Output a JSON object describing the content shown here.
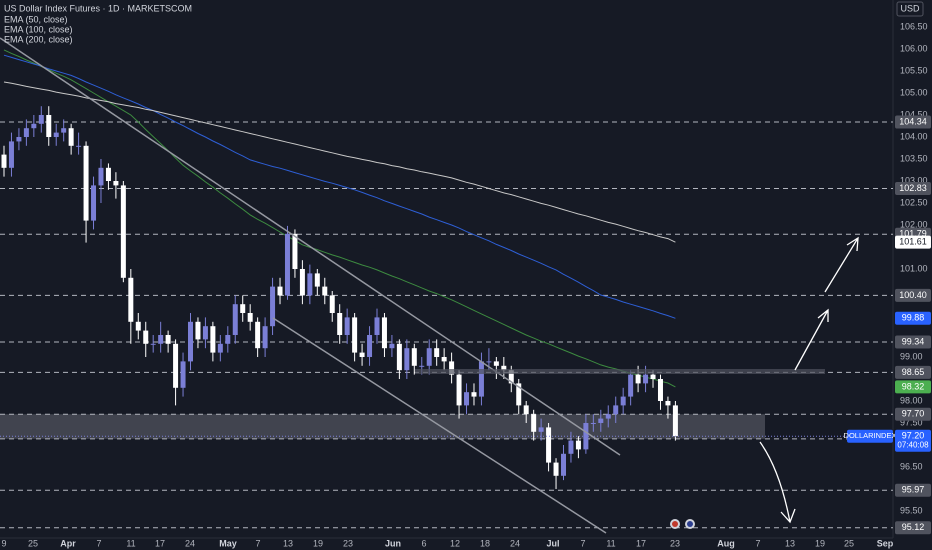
{
  "chart_data": {
    "type": "candlestick",
    "title": "US Dollar Index Futures · 1D · MARKETSCOM",
    "currency": "USD",
    "up_color": "#7b7fd6",
    "down_color": "#ffffff",
    "ylim": [
      94.886,
      107.114
    ],
    "yticks": [
      {
        "value": 106.5,
        "label": "106.50"
      },
      {
        "value": 106,
        "label": "106.00"
      },
      {
        "value": 105.5,
        "label": "105.50"
      },
      {
        "value": 105,
        "label": "105.00"
      },
      {
        "value": 104.5,
        "label": "104.50"
      },
      {
        "value": 104,
        "label": "104.00"
      },
      {
        "value": 103.5,
        "label": "103.50"
      },
      {
        "value": 103,
        "label": "103.00"
      },
      {
        "value": 102.5,
        "label": "102.50"
      },
      {
        "value": 102,
        "label": "102.00"
      },
      {
        "value": 101,
        "label": "101.00"
      },
      {
        "value": 99,
        "label": "99.00"
      },
      {
        "value": 98,
        "label": "98.00"
      },
      {
        "value": 97.5,
        "label": "97.50"
      },
      {
        "value": 96.5,
        "label": "96.50"
      },
      {
        "value": 95.5,
        "label": "95.50"
      }
    ],
    "x_labels": [
      "9",
      "25",
      "Apr",
      "7",
      "11",
      "17",
      "24",
      "May",
      "7",
      "13",
      "19",
      "23",
      "Jun",
      "6",
      "12",
      "18",
      "24",
      "Jul",
      "7",
      "11",
      "17",
      "23",
      "Aug",
      "7",
      "13",
      "19",
      "25",
      "Sep"
    ],
    "candles": [
      [
        103.6,
        103.8,
        103.1,
        103.3
      ],
      [
        103.3,
        104.1,
        103.1,
        103.9
      ],
      [
        103.9,
        104.2,
        103.7,
        104.0
      ],
      [
        104.0,
        104.4,
        103.8,
        104.2
      ],
      [
        104.2,
        104.5,
        104.0,
        104.3
      ],
      [
        104.3,
        104.7,
        104.1,
        104.5
      ],
      [
        104.5,
        104.7,
        103.8,
        104.0
      ],
      [
        104.0,
        104.3,
        103.8,
        104.1
      ],
      [
        104.1,
        104.4,
        103.9,
        104.2
      ],
      [
        104.2,
        104.3,
        103.6,
        103.8
      ],
      [
        103.8,
        104.1,
        103.6,
        103.8
      ],
      [
        103.8,
        103.9,
        101.6,
        102.1
      ],
      [
        102.1,
        103.1,
        101.9,
        102.9
      ],
      [
        102.9,
        103.5,
        102.5,
        103.3
      ],
      [
        103.3,
        103.4,
        102.8,
        103.0
      ],
      [
        103.0,
        103.2,
        102.6,
        102.9
      ],
      [
        102.9,
        103.0,
        100.7,
        100.8
      ],
      [
        100.8,
        101.0,
        99.3,
        99.8
      ],
      [
        99.8,
        100.0,
        99.4,
        99.6
      ],
      [
        99.6,
        99.8,
        99.0,
        99.3
      ],
      [
        99.3,
        99.5,
        99.1,
        99.3
      ],
      [
        99.3,
        99.8,
        99.1,
        99.5
      ],
      [
        99.5,
        99.6,
        99.1,
        99.3
      ],
      [
        99.3,
        99.4,
        97.9,
        98.3
      ],
      [
        98.3,
        99.1,
        98.1,
        98.9
      ],
      [
        98.9,
        100.0,
        98.7,
        99.8
      ],
      [
        99.8,
        99.9,
        99.2,
        99.4
      ],
      [
        99.4,
        99.9,
        99.2,
        99.7
      ],
      [
        99.7,
        99.8,
        98.9,
        99.1
      ],
      [
        99.1,
        99.5,
        98.9,
        99.3
      ],
      [
        99.3,
        99.7,
        99.1,
        99.5
      ],
      [
        99.5,
        100.4,
        99.3,
        100.2
      ],
      [
        100.2,
        100.4,
        99.8,
        100.0
      ],
      [
        100.0,
        100.2,
        99.6,
        99.8
      ],
      [
        99.8,
        99.9,
        99.0,
        99.2
      ],
      [
        99.2,
        99.9,
        99.0,
        99.7
      ],
      [
        99.7,
        100.8,
        99.5,
        100.6
      ],
      [
        100.6,
        100.8,
        100.2,
        100.4
      ],
      [
        100.4,
        101.98,
        100.3,
        101.8
      ],
      [
        101.8,
        101.9,
        100.8,
        101.0
      ],
      [
        101.0,
        101.2,
        100.2,
        100.4
      ],
      [
        100.4,
        101.1,
        100.2,
        100.9
      ],
      [
        100.9,
        101.0,
        100.4,
        100.6
      ],
      [
        100.6,
        100.8,
        100.2,
        100.4
      ],
      [
        100.4,
        100.5,
        99.8,
        100.0
      ],
      [
        100.0,
        100.2,
        99.3,
        99.5
      ],
      [
        99.5,
        100.1,
        99.3,
        99.9
      ],
      [
        99.9,
        100.0,
        98.9,
        99.1
      ],
      [
        99.1,
        99.3,
        98.8,
        99.0
      ],
      [
        99.0,
        99.7,
        98.8,
        99.5
      ],
      [
        99.5,
        100.1,
        99.3,
        99.9
      ],
      [
        99.9,
        100.0,
        99.0,
        99.2
      ],
      [
        99.2,
        99.5,
        99.0,
        99.3
      ],
      [
        99.3,
        99.4,
        98.5,
        98.7
      ],
      [
        98.7,
        99.4,
        98.5,
        99.2
      ],
      [
        99.2,
        99.3,
        98.6,
        98.8
      ],
      [
        98.8,
        99.0,
        98.6,
        98.8
      ],
      [
        98.8,
        99.4,
        98.6,
        99.2
      ],
      [
        99.2,
        99.4,
        98.8,
        99.0
      ],
      [
        99.0,
        99.2,
        98.7,
        98.9
      ],
      [
        98.9,
        99.1,
        98.4,
        98.6
      ],
      [
        98.6,
        98.7,
        97.6,
        97.9
      ],
      [
        97.9,
        98.4,
        97.7,
        98.2
      ],
      [
        98.2,
        98.4,
        97.9,
        98.1
      ],
      [
        98.1,
        99.1,
        97.9,
        98.9
      ],
      [
        98.9,
        99.2,
        98.7,
        98.9
      ],
      [
        98.9,
        99.0,
        98.5,
        98.8
      ],
      [
        98.8,
        99.0,
        98.5,
        98.7
      ],
      [
        98.7,
        98.8,
        98.2,
        98.4
      ],
      [
        98.4,
        98.5,
        97.7,
        97.9
      ],
      [
        97.9,
        98.0,
        97.5,
        97.7
      ],
      [
        97.7,
        97.8,
        97.1,
        97.3
      ],
      [
        97.3,
        97.6,
        97.1,
        97.4
      ],
      [
        97.4,
        97.5,
        96.4,
        96.6
      ],
      [
        96.6,
        96.7,
        96.0,
        96.3
      ],
      [
        96.3,
        97.0,
        96.2,
        96.8
      ],
      [
        96.8,
        97.3,
        96.6,
        97.1
      ],
      [
        97.1,
        97.2,
        96.7,
        96.9
      ],
      [
        96.9,
        97.7,
        96.8,
        97.5
      ],
      [
        97.5,
        97.7,
        97.3,
        97.5
      ],
      [
        97.5,
        97.8,
        97.3,
        97.6
      ],
      [
        97.6,
        97.9,
        97.4,
        97.7
      ],
      [
        97.7,
        98.1,
        97.5,
        97.9
      ],
      [
        97.9,
        98.3,
        97.7,
        98.1
      ],
      [
        98.1,
        98.7,
        97.9,
        98.6
      ],
      [
        98.6,
        98.8,
        98.2,
        98.4
      ],
      [
        98.4,
        98.8,
        98.2,
        98.6
      ],
      [
        98.6,
        98.7,
        98.3,
        98.5
      ],
      [
        98.5,
        98.6,
        97.8,
        98.0
      ],
      [
        98.0,
        98.1,
        97.6,
        97.9
      ],
      [
        97.9,
        98.0,
        97.1,
        97.2
      ]
    ],
    "series": [
      {
        "name": "EMA (50, close)",
        "color": "#3d8b40",
        "label_color": "#4caf50",
        "last_label": "98.32",
        "values": [
          105.98,
          105.9,
          105.83,
          105.75,
          105.68,
          105.6,
          105.53,
          105.45,
          105.38,
          105.3,
          105.2,
          105.1,
          105.0,
          104.9,
          104.8,
          104.7,
          104.6,
          104.5,
          104.34,
          104.17,
          104.01,
          103.85,
          103.69,
          103.52,
          103.36,
          103.23,
          103.11,
          102.98,
          102.86,
          102.73,
          102.61,
          102.48,
          102.36,
          102.23,
          102.13,
          102.04,
          101.94,
          101.84,
          101.74,
          101.65,
          101.55,
          101.49,
          101.44,
          101.38,
          101.32,
          101.27,
          101.21,
          101.15,
          101.09,
          101.04,
          100.98,
          100.91,
          100.84,
          100.78,
          100.71,
          100.64,
          100.57,
          100.5,
          100.44,
          100.37,
          100.3,
          100.22,
          100.14,
          100.06,
          99.98,
          99.9,
          99.82,
          99.74,
          99.66,
          99.58,
          99.5,
          99.43,
          99.36,
          99.3,
          99.23,
          99.16,
          99.09,
          99.02,
          98.96,
          98.89,
          98.82,
          98.77,
          98.73,
          98.68,
          98.63,
          98.59,
          98.54,
          98.5,
          98.45,
          98.41,
          98.32
        ]
      },
      {
        "name": "EMA (100, close)",
        "color": "#2e5fd6",
        "label_color": "#2962ff",
        "last_label": "99.88",
        "values": [
          105.86,
          105.81,
          105.76,
          105.71,
          105.66,
          105.61,
          105.55,
          105.5,
          105.45,
          105.4,
          105.33,
          105.25,
          105.18,
          105.11,
          105.04,
          104.96,
          104.89,
          104.82,
          104.75,
          104.67,
          104.6,
          104.51,
          104.43,
          104.34,
          104.26,
          104.17,
          104.08,
          104.0,
          103.91,
          103.83,
          103.74,
          103.65,
          103.57,
          103.48,
          103.43,
          103.38,
          103.33,
          103.29,
          103.24,
          103.19,
          103.14,
          103.09,
          103.04,
          102.99,
          102.95,
          102.9,
          102.85,
          102.8,
          102.74,
          102.68,
          102.62,
          102.55,
          102.49,
          102.43,
          102.37,
          102.31,
          102.25,
          102.18,
          102.12,
          102.06,
          102.0,
          101.93,
          101.85,
          101.78,
          101.71,
          101.64,
          101.56,
          101.49,
          101.42,
          101.34,
          101.27,
          101.2,
          101.13,
          101.05,
          100.98,
          100.88,
          100.79,
          100.7,
          100.6,
          100.51,
          100.41,
          100.36,
          100.31,
          100.25,
          100.2,
          100.15,
          100.1,
          100.05,
          99.99,
          99.94,
          99.88
        ]
      },
      {
        "name": "EMA (200, close)",
        "color": "#c8c8c8",
        "label_color": "#ffffff",
        "last_label": "101.61",
        "values": [
          105.25,
          105.22,
          105.19,
          105.15,
          105.12,
          105.09,
          105.06,
          105.02,
          104.99,
          104.96,
          104.93,
          104.89,
          104.86,
          104.83,
          104.8,
          104.76,
          104.73,
          104.7,
          104.67,
          104.63,
          104.6,
          104.56,
          104.52,
          104.48,
          104.44,
          104.4,
          104.36,
          104.32,
          104.28,
          104.24,
          104.2,
          104.16,
          104.12,
          104.08,
          104.04,
          104.0,
          103.96,
          103.92,
          103.88,
          103.84,
          103.8,
          103.76,
          103.72,
          103.68,
          103.64,
          103.6,
          103.56,
          103.53,
          103.49,
          103.46,
          103.42,
          103.39,
          103.35,
          103.32,
          103.28,
          103.25,
          103.21,
          103.18,
          103.14,
          103.11,
          103.07,
          103.02,
          102.97,
          102.93,
          102.88,
          102.83,
          102.78,
          102.73,
          102.69,
          102.64,
          102.59,
          102.54,
          102.49,
          102.45,
          102.4,
          102.35,
          102.3,
          102.25,
          102.21,
          102.16,
          102.11,
          102.06,
          102.02,
          101.97,
          101.92,
          101.87,
          101.83,
          101.78,
          101.73,
          101.69,
          101.61
        ]
      }
    ],
    "levels": [
      104.34,
      102.83,
      101.79,
      {
        "value": 100.4,
        "label": "100.40"
      },
      99.34,
      98.65,
      {
        "value": 97.7,
        "label": "97.70"
      },
      97.14,
      95.97,
      95.12
    ],
    "current": {
      "symbol": "DOLLARINDEX",
      "value": 97.2,
      "label": "97.20",
      "countdown": "07:40:08"
    }
  }
}
